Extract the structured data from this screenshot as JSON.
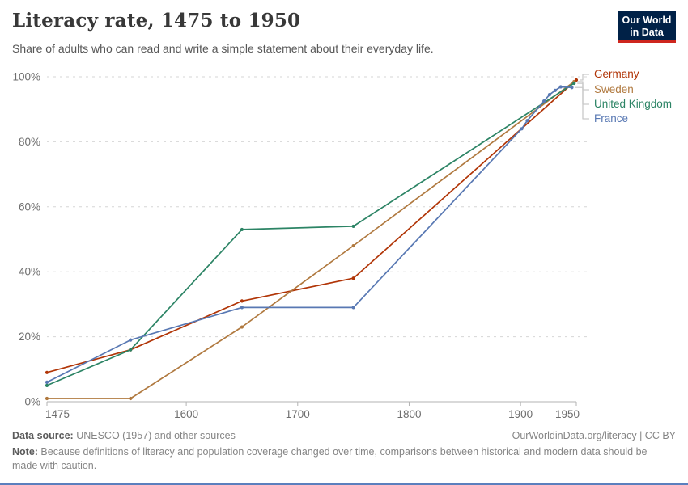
{
  "header": {
    "title": "Literacy rate, 1475 to 1950",
    "subtitle": "Share of adults who can read and write a simple statement about their everyday life."
  },
  "logo": {
    "line1": "Our World",
    "line2": "in Data",
    "bg_color": "#002147",
    "stripe_color": "#CE261E"
  },
  "chart_data": {
    "type": "line",
    "title": "Literacy rate, 1475 to 1950",
    "xlabel": "",
    "ylabel": "",
    "xlim": [
      1475,
      1950
    ],
    "ylim": [
      0,
      100
    ],
    "x_ticks": [
      1475,
      1600,
      1700,
      1800,
      1900,
      1950
    ],
    "y_ticks": [
      0,
      20,
      40,
      60,
      80,
      100
    ],
    "y_tick_suffix": "%",
    "grid": "horizontal-dashed",
    "legend_position": "right-of-line-ends",
    "series": [
      {
        "name": "Germany",
        "color": "#B13507",
        "points": [
          [
            1475,
            9
          ],
          [
            1550,
            16
          ],
          [
            1650,
            31
          ],
          [
            1750,
            38
          ],
          [
            1950,
            99
          ]
        ]
      },
      {
        "name": "Sweden",
        "color": "#B0793F",
        "points": [
          [
            1475,
            1
          ],
          [
            1550,
            1
          ],
          [
            1650,
            23
          ],
          [
            1750,
            48
          ],
          [
            1948,
            98.5
          ]
        ]
      },
      {
        "name": "United Kingdom",
        "color": "#2C8465",
        "points": [
          [
            1475,
            5
          ],
          [
            1550,
            16
          ],
          [
            1650,
            53
          ],
          [
            1750,
            54
          ],
          [
            1948,
            98
          ]
        ]
      },
      {
        "name": "France",
        "color": "#5878B3",
        "points": [
          [
            1475,
            6
          ],
          [
            1550,
            19
          ],
          [
            1650,
            29
          ],
          [
            1750,
            29
          ],
          [
            1901,
            84
          ],
          [
            1906,
            86.5
          ],
          [
            1921,
            92.5
          ],
          [
            1926,
            94.5
          ],
          [
            1931,
            95.8
          ],
          [
            1936,
            96.9
          ],
          [
            1946,
            96.7
          ]
        ]
      }
    ],
    "style": {
      "grid_color": "#d6d6d6",
      "axis_color": "#b3b3b3",
      "tick_label_color": "#6e6e6e",
      "leader_line_color": "#c9c9c9"
    }
  },
  "footer": {
    "source_label": "Data source:",
    "source_text": " UNESCO (1957) and other sources",
    "link": "OurWorldinData.org/literacy | CC BY",
    "note_label": "Note:",
    "note_text": " Because definitions of literacy and population coverage changed over time, comparisons between historical and modern data should be made with caution."
  },
  "accents": {
    "bottom_bar_color": "#5B7FBE"
  }
}
